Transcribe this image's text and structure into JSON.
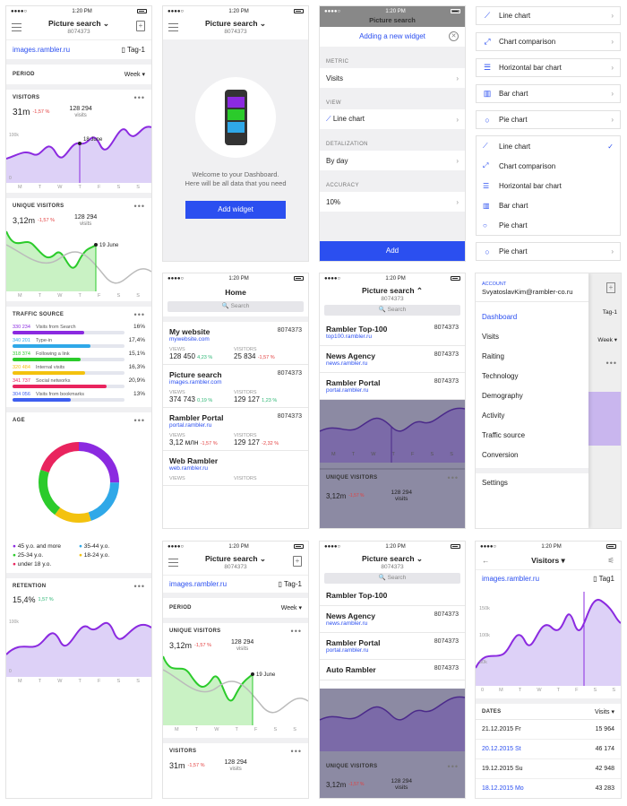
{
  "common": {
    "status_dots": "●●●●○",
    "time": "1:20 PM",
    "app_title": "Picture search",
    "app_id": "8074373",
    "site_url": "images.rambler.ru",
    "tag": "Tag-1",
    "period_label": "PERIOD",
    "period_value": "Week ▾",
    "more": "•••",
    "add_sym": "+",
    "week_days": [
      "M",
      "T",
      "W",
      "T",
      "F",
      "S",
      "S"
    ],
    "search_placeholder": "🔍 Search"
  },
  "dashboard": {
    "visitors": {
      "label": "VISITORS",
      "value": "31m",
      "delta": "-1,57 %",
      "count": "128 294",
      "count_label": "visits",
      "marker": "18 June",
      "y_labels": [
        "100k",
        "0"
      ]
    },
    "unique": {
      "label": "UNIQUE VISITORS",
      "value": "3,12m",
      "delta": "-1,57 %",
      "count": "128 294",
      "count_label": "visits",
      "marker": "19 June"
    },
    "traffic": {
      "label": "TRAFFIC SOURCE",
      "items": [
        {
          "num": "330 234",
          "label": "Visits from Search",
          "pct": "16%",
          "color": "#8b2ae0",
          "fill": 0.16
        },
        {
          "num": "340 201",
          "label": "Type-in",
          "pct": "17,4%",
          "color": "#2fa8e8",
          "fill": 0.174
        },
        {
          "num": "318 374",
          "label": "Following a link",
          "pct": "15,1%",
          "color": "#2bcb2b",
          "fill": 0.151
        },
        {
          "num": "320 484",
          "label": "Internal visits",
          "pct": "16,3%",
          "color": "#f3c20f",
          "fill": 0.163
        },
        {
          "num": "341 737",
          "label": "Social networks",
          "pct": "20,9%",
          "color": "#e9245e",
          "fill": 0.209
        },
        {
          "num": "304 056",
          "label": "Visits from bookmarks",
          "pct": "13%",
          "color": "#3e5ff0",
          "fill": 0.13
        }
      ]
    },
    "age": {
      "label": "AGE",
      "legend": [
        {
          "label": "45 y.o. and more",
          "color": "#8b2ae0"
        },
        {
          "label": "35-44 y.o.",
          "color": "#2fa8e8"
        },
        {
          "label": "25-34 y.o.",
          "color": "#2bcb2b"
        },
        {
          "label": "18-24 y.o.",
          "color": "#f3c20f"
        },
        {
          "label": "under 18 y.o.",
          "color": "#e9245e"
        }
      ]
    },
    "retention": {
      "label": "RETENTION",
      "value": "15,4%",
      "delta": "1,57 %",
      "y_labels": [
        "100k",
        "0"
      ]
    }
  },
  "welcome": {
    "text": "Welcome to your Dashboard. Here will be all data that you need",
    "button": "Add widget"
  },
  "add_widget": {
    "title": "Adding a new widget",
    "metric_label": "METRIC",
    "metric_value": "Visits",
    "view_label": "VIEW",
    "view_value": "Line chart",
    "detail_label": "DETALIZATION",
    "detail_value": "By day",
    "acc_label": "ACCURACY",
    "acc_value": "10%",
    "button": "Add"
  },
  "chart_types": {
    "list1": [
      "Line chart",
      "Chart comparison",
      "Horizontal bar chart",
      "Bar chart",
      "Pie chart"
    ],
    "list2": [
      "Line chart",
      "Chart comparison",
      "Horizontal bar chart",
      "Bar chart",
      "Pie chart"
    ],
    "single": "Pie chart",
    "check": "✓"
  },
  "home": {
    "title": "Home",
    "sites": [
      {
        "name": "My website",
        "url": "mywebsite.com",
        "id": "8074373",
        "views": "128 450",
        "vd": "4,23 %",
        "visitors": "25 834",
        "vsd": "-1,57 %"
      },
      {
        "name": "Picture search",
        "url": "images.rambler.com",
        "id": "8074373",
        "views": "374 743",
        "vd": "0,19 %",
        "visitors": "129 127",
        "vsd": "1,23 %"
      },
      {
        "name": "Rambler Portal",
        "url": "portal.rambler.ru",
        "id": "8074373",
        "views": "3,12 млн",
        "vd": "-1,57 %",
        "visitors": "129 127",
        "vsd": "-2,32 %"
      },
      {
        "name": "Web Rambler",
        "url": "web.rambler.ru",
        "id": "",
        "views": "",
        "vd": "",
        "visitors": "",
        "vsd": ""
      }
    ],
    "views_label": "VIEWS",
    "visitors_label": "VISITORS"
  },
  "dropdown": {
    "items": [
      {
        "name": "Rambler Top-100",
        "url": "top100.rambler.ru",
        "id": "8074373"
      },
      {
        "name": "News Agency",
        "url": "news.rambler.ru",
        "id": "8074373"
      },
      {
        "name": "Rambler Portal",
        "url": "portal.rambler.ru",
        "id": "8074373"
      }
    ],
    "uv_label": "UNIQUE VISITORS",
    "uv_value": "3,12m",
    "uv_delta": "-1,57 %",
    "uv_count": "128 294",
    "uv_count_label": "visits"
  },
  "dropdown2": {
    "items": [
      {
        "name": "Rambler Top-100",
        "url": "",
        "id": ""
      },
      {
        "name": "News Agency",
        "url": "news.rambler.ru",
        "id": "8074373"
      },
      {
        "name": "Rambler Portal",
        "url": "portal.rambler.ru",
        "id": "8074373"
      },
      {
        "name": "Auto Rambler",
        "url": "",
        "id": "8074373"
      }
    ]
  },
  "side_menu": {
    "account_label": "ACCOUNT",
    "email": "SvyatoslavKim@rambler-co.ru",
    "items": [
      "Dashboard",
      "Visits",
      "Raiting",
      "Technology",
      "Demography",
      "Activity",
      "Traffic source",
      "Conversion"
    ],
    "settings": "Settings"
  },
  "visitors_detail": {
    "title": "Visitors ▾",
    "site": "images.rambler.ru",
    "tag": "Tag1",
    "y_labels": [
      "150k",
      "100k",
      "50k"
    ],
    "axis": [
      "0",
      "M",
      "T",
      "W",
      "T",
      "F",
      "S",
      "S"
    ],
    "dates_label": "DATES",
    "visits_label": "Visits ▾",
    "rows": [
      {
        "d": "21.12.2015 Fr",
        "v": "15 964"
      },
      {
        "d": "20.12.2015 St",
        "v": "46 174"
      },
      {
        "d": "19.12.2015 Su",
        "v": "42 948"
      },
      {
        "d": "18.12.2015 Mo",
        "v": "43 283"
      }
    ]
  }
}
